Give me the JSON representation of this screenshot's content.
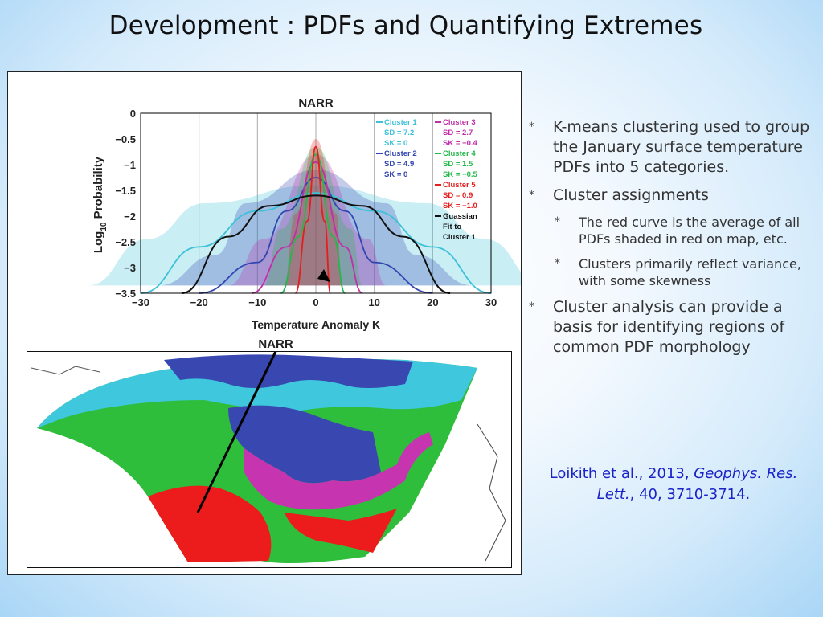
{
  "title": "Development : PDFs and Quantifying Extremes",
  "figure": {
    "chart_title": "NARR",
    "map_title": "NARR",
    "xlabel": "Temperature Anomaly K",
    "ylabel": "Log10 Probability",
    "ylabel_main": "Log",
    "ylabel_sub": "10",
    "ylabel_rest": " Probability",
    "x_ticks": [
      "−30",
      "−20",
      "−10",
      "0",
      "10",
      "20",
      "30"
    ],
    "y_ticks": [
      "0",
      "−0.5",
      "−1",
      "−1.5",
      "−2",
      "−2.5",
      "−3",
      "−3.5"
    ],
    "legend": [
      {
        "name": "Cluster 1",
        "sd": "SD = 7.2",
        "sk": "SK = 0",
        "color": "#3cc1d9"
      },
      {
        "name": "Cluster 2",
        "sd": "SD = 4.9",
        "sk": "SK = 0",
        "color": "#3345b0"
      },
      {
        "name": "Cluster 3",
        "sd": "SD = 2.7",
        "sk": "SK = −0.4",
        "color": "#c02fa8"
      },
      {
        "name": "Cluster 4",
        "sd": "SD = 1.5",
        "sk": "SK = −0.5",
        "color": "#23b84a"
      },
      {
        "name": "Cluster 5",
        "sd": "SD = 0.9",
        "sk": "SK = −1.0",
        "color": "#e51d1d"
      }
    ],
    "gauss_legend": [
      "Guassian",
      "Fit to",
      "Cluster 1"
    ],
    "gauss_color": "#111111"
  },
  "chart_data": {
    "type": "line",
    "title": "NARR",
    "xlabel": "Temperature Anomaly K",
    "ylabel": "Log10 Probability",
    "xlim": [
      -30,
      30
    ],
    "ylim": [
      -3.5,
      0
    ],
    "x_ticks": [
      -30,
      -20,
      -10,
      0,
      10,
      20,
      30
    ],
    "y_ticks": [
      0,
      -0.5,
      -1,
      -1.5,
      -2,
      -2.5,
      -3,
      -3.5
    ],
    "series": [
      {
        "name": "Cluster 1",
        "sd": 7.2,
        "sk": 0,
        "x": [
          -30,
          -20,
          -10,
          0,
          10,
          20,
          30
        ],
        "y": [
          -3.5,
          -2.6,
          -1.9,
          -1.55,
          -1.9,
          -2.6,
          -3.5
        ]
      },
      {
        "name": "Cluster 2",
        "sd": 4.9,
        "sk": 0,
        "x": [
          -20,
          -10,
          -5,
          0,
          5,
          10,
          20
        ],
        "y": [
          -3.5,
          -2.9,
          -1.9,
          -1.25,
          -1.9,
          -2.9,
          -3.5
        ]
      },
      {
        "name": "Cluster 3",
        "sd": 2.7,
        "sk": -0.4,
        "x": [
          -11,
          -5,
          0,
          5,
          8
        ],
        "y": [
          -3.5,
          -2.6,
          -0.95,
          -2.6,
          -3.5
        ]
      },
      {
        "name": "Cluster 4",
        "sd": 1.5,
        "sk": -0.5,
        "x": [
          -6,
          -3,
          0,
          3,
          5
        ],
        "y": [
          -3.5,
          -2.4,
          -0.8,
          -2.4,
          -3.5
        ]
      },
      {
        "name": "Cluster 5",
        "sd": 0.9,
        "sk": -1.0,
        "x": [
          -3.5,
          -1.5,
          0,
          1.5,
          2.5
        ],
        "y": [
          -3.5,
          -2.1,
          -0.65,
          -2.1,
          -3.5
        ]
      },
      {
        "name": "Guassian Fit to Cluster 1",
        "x": [
          -23,
          -15,
          -8,
          0,
          8,
          15,
          23
        ],
        "y": [
          -3.5,
          -2.4,
          -1.8,
          -1.6,
          -1.8,
          -2.4,
          -3.5
        ]
      }
    ]
  },
  "bullets": [
    {
      "text": "K-means clustering used to group the January surface temperature PDFs into 5 categories.",
      "level": 1
    },
    {
      "text": "Cluster assignments",
      "level": 1
    },
    {
      "text": "The red curve is the average of all PDFs shaded in red on map, etc.",
      "level": 2
    },
    {
      "text": "Clusters primarily reflect variance, with some skewness",
      "level": 2
    },
    {
      "text": "Cluster analysis can provide a basis for identifying regions of common PDF morphology",
      "level": 1
    }
  ],
  "citation": {
    "authors": "Loikith et al., 2013, ",
    "journal": "Geophys. Res. Lett.",
    "details": ", 40, 3710-3714."
  },
  "colors": {
    "cluster1": "#3cc1d9",
    "cluster2": "#3345b0",
    "cluster3": "#c02fa8",
    "cluster4": "#23b84a",
    "cluster5": "#e51d1d",
    "citation": "#1a22c8"
  }
}
